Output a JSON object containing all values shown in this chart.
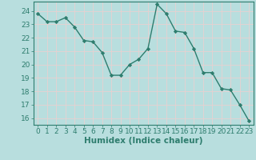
{
  "x": [
    0,
    1,
    2,
    3,
    4,
    5,
    6,
    7,
    8,
    9,
    10,
    11,
    12,
    13,
    14,
    15,
    16,
    17,
    18,
    19,
    20,
    21,
    22,
    23
  ],
  "y": [
    23.8,
    23.2,
    23.2,
    23.5,
    22.8,
    21.8,
    21.7,
    20.9,
    19.2,
    19.2,
    20.0,
    20.4,
    21.2,
    24.5,
    23.8,
    22.5,
    22.4,
    21.2,
    19.4,
    19.4,
    18.2,
    18.1,
    17.0,
    15.8
  ],
  "line_color": "#2e7d6e",
  "marker": "D",
  "marker_size": 2.2,
  "bg_color": "#b8dede",
  "grid_color": "#d4eaea",
  "xlabel": "Humidex (Indice chaleur)",
  "ylim": [
    15.5,
    24.7
  ],
  "xlim": [
    -0.5,
    23.5
  ],
  "yticks": [
    16,
    17,
    18,
    19,
    20,
    21,
    22,
    23,
    24
  ],
  "xticks": [
    0,
    1,
    2,
    3,
    4,
    5,
    6,
    7,
    8,
    9,
    10,
    11,
    12,
    13,
    14,
    15,
    16,
    17,
    18,
    19,
    20,
    21,
    22,
    23
  ],
  "tick_color": "#2e7d6e",
  "xlabel_fontsize": 7.5,
  "tick_fontsize": 6.5,
  "linewidth": 1.0
}
